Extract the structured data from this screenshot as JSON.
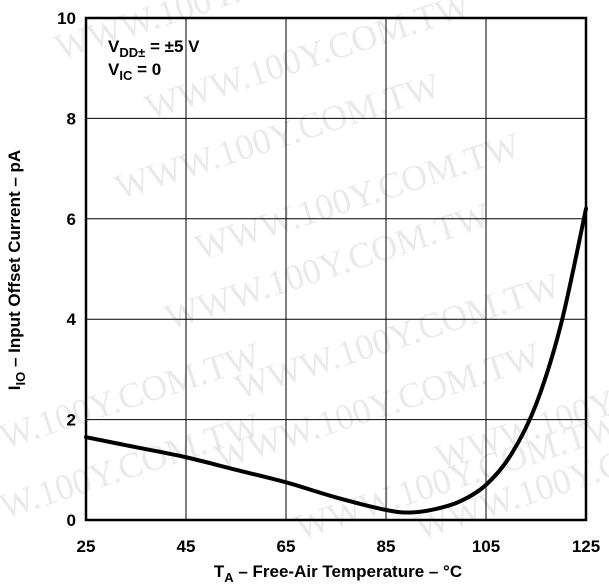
{
  "chart_data": {
    "type": "line",
    "xlabel": {
      "main": "T",
      "sub": "A",
      "rest": " – Free-Air Temperature – °C"
    },
    "ylabel": {
      "main": "I",
      "sub": "IO",
      "rest": " – Input Offset Current – pA"
    },
    "xlim": [
      25,
      125
    ],
    "ylim": [
      0,
      10
    ],
    "x_ticks": [
      "25",
      "45",
      "65",
      "85",
      "105",
      "125"
    ],
    "y_ticks": [
      "0",
      "2",
      "4",
      "6",
      "8",
      "10"
    ],
    "grid": true,
    "annotation": {
      "line1": {
        "main": "V",
        "sub": "DD±",
        "rest": " = ±5 V"
      },
      "line2": {
        "main": "V",
        "sub": "IC",
        "rest": " = 0"
      }
    },
    "series": [
      {
        "x": [
          25,
          35,
          45,
          55,
          65,
          75,
          85,
          90,
          95,
          100,
          105,
          110,
          115,
          120,
          125
        ],
        "y": [
          1.65,
          1.45,
          1.25,
          1.0,
          0.75,
          0.45,
          0.2,
          0.15,
          0.22,
          0.38,
          0.7,
          1.3,
          2.3,
          3.9,
          6.2
        ]
      }
    ]
  },
  "watermark": "WWW.100Y.COM.TW"
}
